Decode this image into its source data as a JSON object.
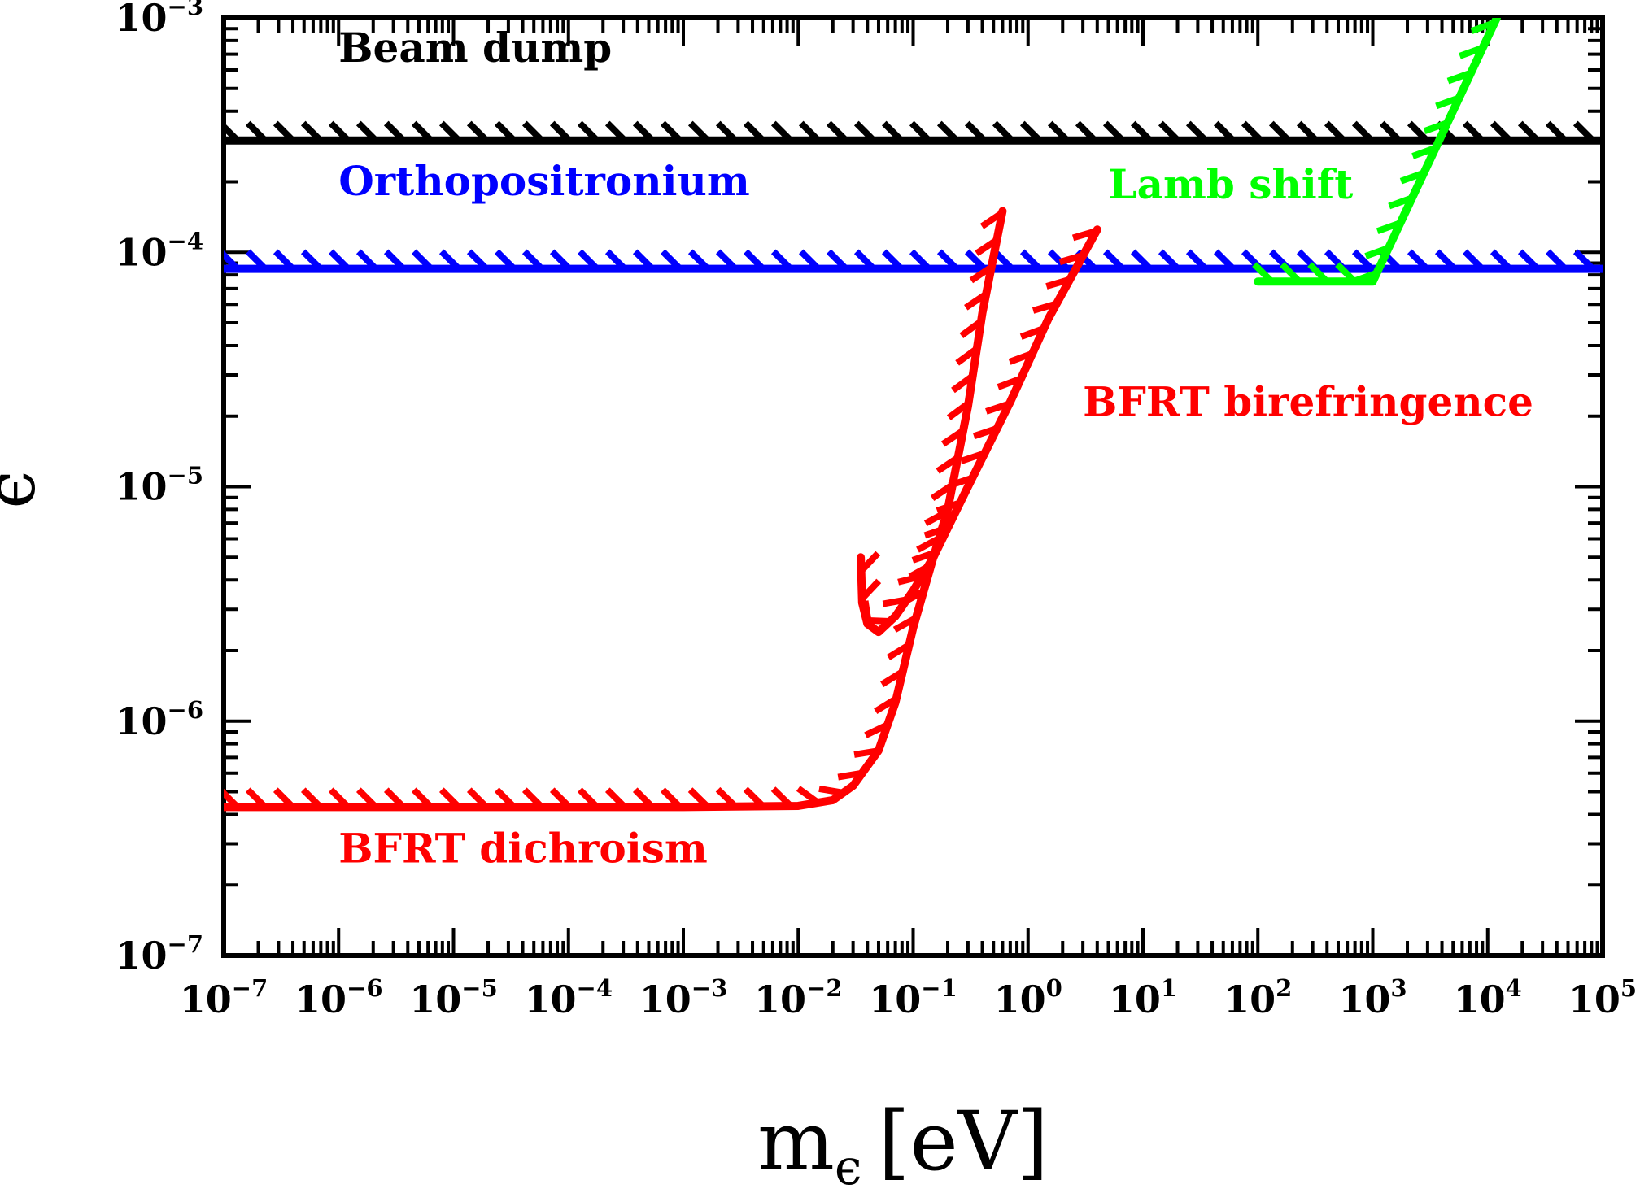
{
  "chart_data": {
    "type": "line",
    "title": "",
    "xlabel_main": "m",
    "xlabel_sub": "ϵ",
    "xlabel_unit": "[eV]",
    "ylabel": "ϵ",
    "x_scale": "log",
    "y_scale": "log",
    "xlim": [
      1e-07,
      100000.0
    ],
    "ylim": [
      1e-07,
      0.001
    ],
    "x_ticks": [
      {
        "base": "10",
        "exp": "−7"
      },
      {
        "base": "10",
        "exp": "−6"
      },
      {
        "base": "10",
        "exp": "−5"
      },
      {
        "base": "10",
        "exp": "−4"
      },
      {
        "base": "10",
        "exp": "−3"
      },
      {
        "base": "10",
        "exp": "−2"
      },
      {
        "base": "10",
        "exp": "−1"
      },
      {
        "base": "10",
        "exp": "0"
      },
      {
        "base": "10",
        "exp": "1"
      },
      {
        "base": "10",
        "exp": "2"
      },
      {
        "base": "10",
        "exp": "3"
      },
      {
        "base": "10",
        "exp": "4"
      },
      {
        "base": "10",
        "exp": "5"
      }
    ],
    "y_ticks": [
      {
        "base": "10",
        "exp": "−7"
      },
      {
        "base": "10",
        "exp": "−6"
      },
      {
        "base": "10",
        "exp": "−5"
      },
      {
        "base": "10",
        "exp": "−4"
      },
      {
        "base": "10",
        "exp": "−3"
      }
    ],
    "grid": false,
    "legend": "none",
    "series": [
      {
        "name": "Beam dump",
        "color": "#000000",
        "hatch": "above",
        "points": [
          [
            1e-07,
            0.0003
          ],
          [
            100000.0,
            0.0003
          ]
        ]
      },
      {
        "name": "Orthopositronium",
        "color": "#0000ff",
        "hatch": "above",
        "points": [
          [
            1e-07,
            8.5e-05
          ],
          [
            100000.0,
            8.5e-05
          ]
        ]
      },
      {
        "name": "BFRT dichroism",
        "color": "#ff0000",
        "hatch": "above",
        "points": [
          [
            1e-07,
            4.3e-07
          ],
          [
            0.001,
            4.3e-07
          ],
          [
            0.01,
            4.35e-07
          ],
          [
            0.02,
            4.6e-07
          ],
          [
            0.03,
            5.3e-07
          ],
          [
            0.05,
            7.5e-07
          ],
          [
            0.07,
            1.2e-06
          ],
          [
            0.1,
            2.5e-06
          ],
          [
            0.15,
            5e-06
          ],
          [
            0.2,
            8e-06
          ],
          [
            0.3,
            2.2e-05
          ],
          [
            0.4,
            5.5e-05
          ],
          [
            0.6,
            0.00015
          ]
        ]
      },
      {
        "name": "BFRT birefringence",
        "color": "#ff0000",
        "hatch": "above",
        "points": [
          [
            0.035,
            5e-06
          ],
          [
            0.036,
            3.2e-06
          ],
          [
            0.04,
            2.6e-06
          ],
          [
            0.05,
            2.4e-06
          ],
          [
            0.07,
            2.8e-06
          ],
          [
            0.1,
            3.6e-06
          ],
          [
            0.15,
            5e-06
          ],
          [
            0.3,
            1e-05
          ],
          [
            0.7,
            2.3e-05
          ],
          [
            1.5,
            5.2e-05
          ],
          [
            4,
            0.000125
          ]
        ]
      },
      {
        "name": "Lamb shift",
        "color": "#00ff00",
        "hatch": "above",
        "points": [
          [
            100,
            7.5e-05
          ],
          [
            1000,
            7.5e-05
          ],
          [
            12000,
            0.001
          ]
        ]
      }
    ],
    "annotations": [
      {
        "text": "Beam dump",
        "x": 1e-06,
        "y": 0.00065,
        "color": "#000000"
      },
      {
        "text": "Orthopositronium",
        "x": 1e-06,
        "y": 0.000175,
        "color": "#0000ff"
      },
      {
        "text": "Lamb shift",
        "x": 5,
        "y": 0.00017,
        "color": "#00ff00"
      },
      {
        "text": "BFRT birefringence",
        "x": 3,
        "y": 2e-05,
        "color": "#ff0000"
      },
      {
        "text": "BFRT dichroism",
        "x": 1e-06,
        "y": 2.5e-07,
        "color": "#ff0000"
      }
    ]
  }
}
